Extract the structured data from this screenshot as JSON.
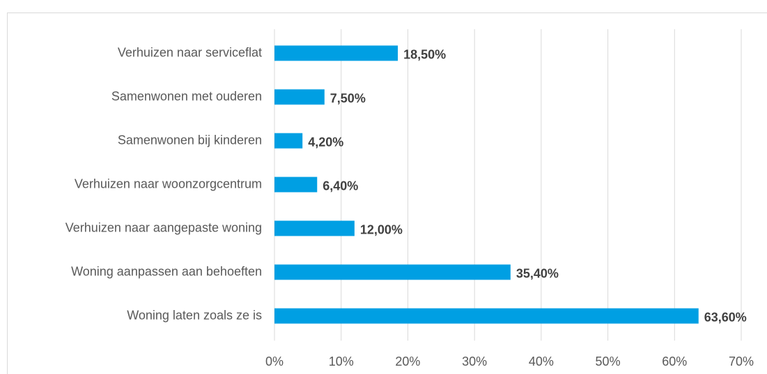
{
  "chart_data": {
    "type": "bar",
    "orientation": "horizontal",
    "categories": [
      "Verhuizen naar serviceflat",
      "Samenwonen met ouderen",
      "Samenwonen bij kinderen",
      "Verhuizen naar woonzorgcentrum",
      "Verhuizen naar aangepaste woning",
      "Woning aanpassen aan behoeften",
      "Woning laten zoals ze is"
    ],
    "values": [
      18.5,
      7.5,
      4.2,
      6.4,
      12.0,
      35.4,
      63.6
    ],
    "value_labels": [
      "18,50%",
      "7,50%",
      "4,20%",
      "6,40%",
      "12,00%",
      "35,40%",
      "63,60%"
    ],
    "color": "#009fe3",
    "xlim": [
      0,
      70
    ],
    "xticks": [
      {
        "value": 0,
        "label": "0%"
      },
      {
        "value": 10,
        "label": "10%"
      },
      {
        "value": 20,
        "label": "20%"
      },
      {
        "value": 30,
        "label": "30%"
      },
      {
        "value": 40,
        "label": "40%"
      },
      {
        "value": 50,
        "label": "50%"
      },
      {
        "value": 60,
        "label": "60%"
      },
      {
        "value": 70,
        "label": "70%"
      }
    ],
    "grid": true
  }
}
